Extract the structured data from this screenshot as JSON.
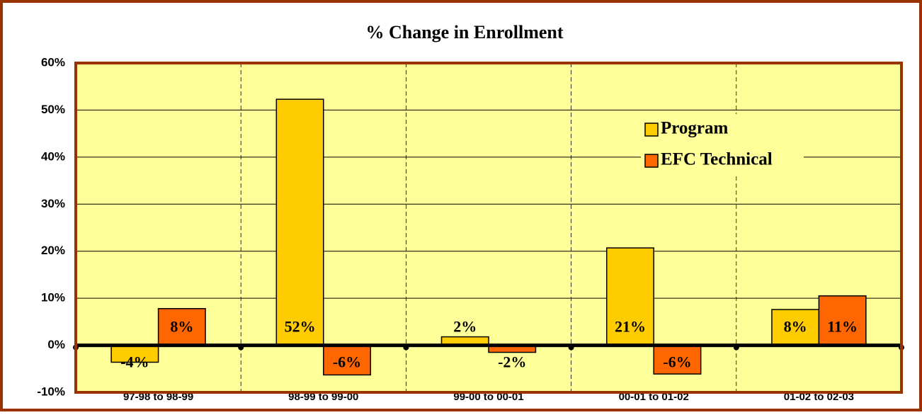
{
  "chart_data": {
    "type": "bar",
    "title": "% Change in Enrollment",
    "categories": [
      "97-98 to 98-99",
      "98-99 to 99-00",
      "99-00 to 00-01",
      "00-01 to 01-02",
      "01-02 to 02-03"
    ],
    "series": [
      {
        "name": "Program",
        "color": "#FFCC00",
        "values": [
          -3.6,
          52.3,
          1.8,
          20.7,
          7.6
        ],
        "value_labels": [
          "-4%",
          "52%",
          "2%",
          "21%",
          "8%"
        ]
      },
      {
        "name": "EFC Technical",
        "color": "#FF6600",
        "values": [
          7.8,
          -6.3,
          -1.5,
          -6.1,
          10.5
        ],
        "value_labels": [
          "8%",
          "-6%",
          "-2%",
          "-6%",
          "11%"
        ]
      }
    ],
    "ylim": [
      -10,
      60
    ],
    "yticks": [
      {
        "value": -10,
        "label": "-10%"
      },
      {
        "value": 0,
        "label": "0%"
      },
      {
        "value": 10,
        "label": "10%"
      },
      {
        "value": 20,
        "label": "20%"
      },
      {
        "value": 30,
        "label": "30%"
      },
      {
        "value": 40,
        "label": "40%"
      },
      {
        "value": 50,
        "label": "50%"
      },
      {
        "value": 60,
        "label": "60%"
      }
    ],
    "grid": true,
    "legend": "upper right"
  }
}
